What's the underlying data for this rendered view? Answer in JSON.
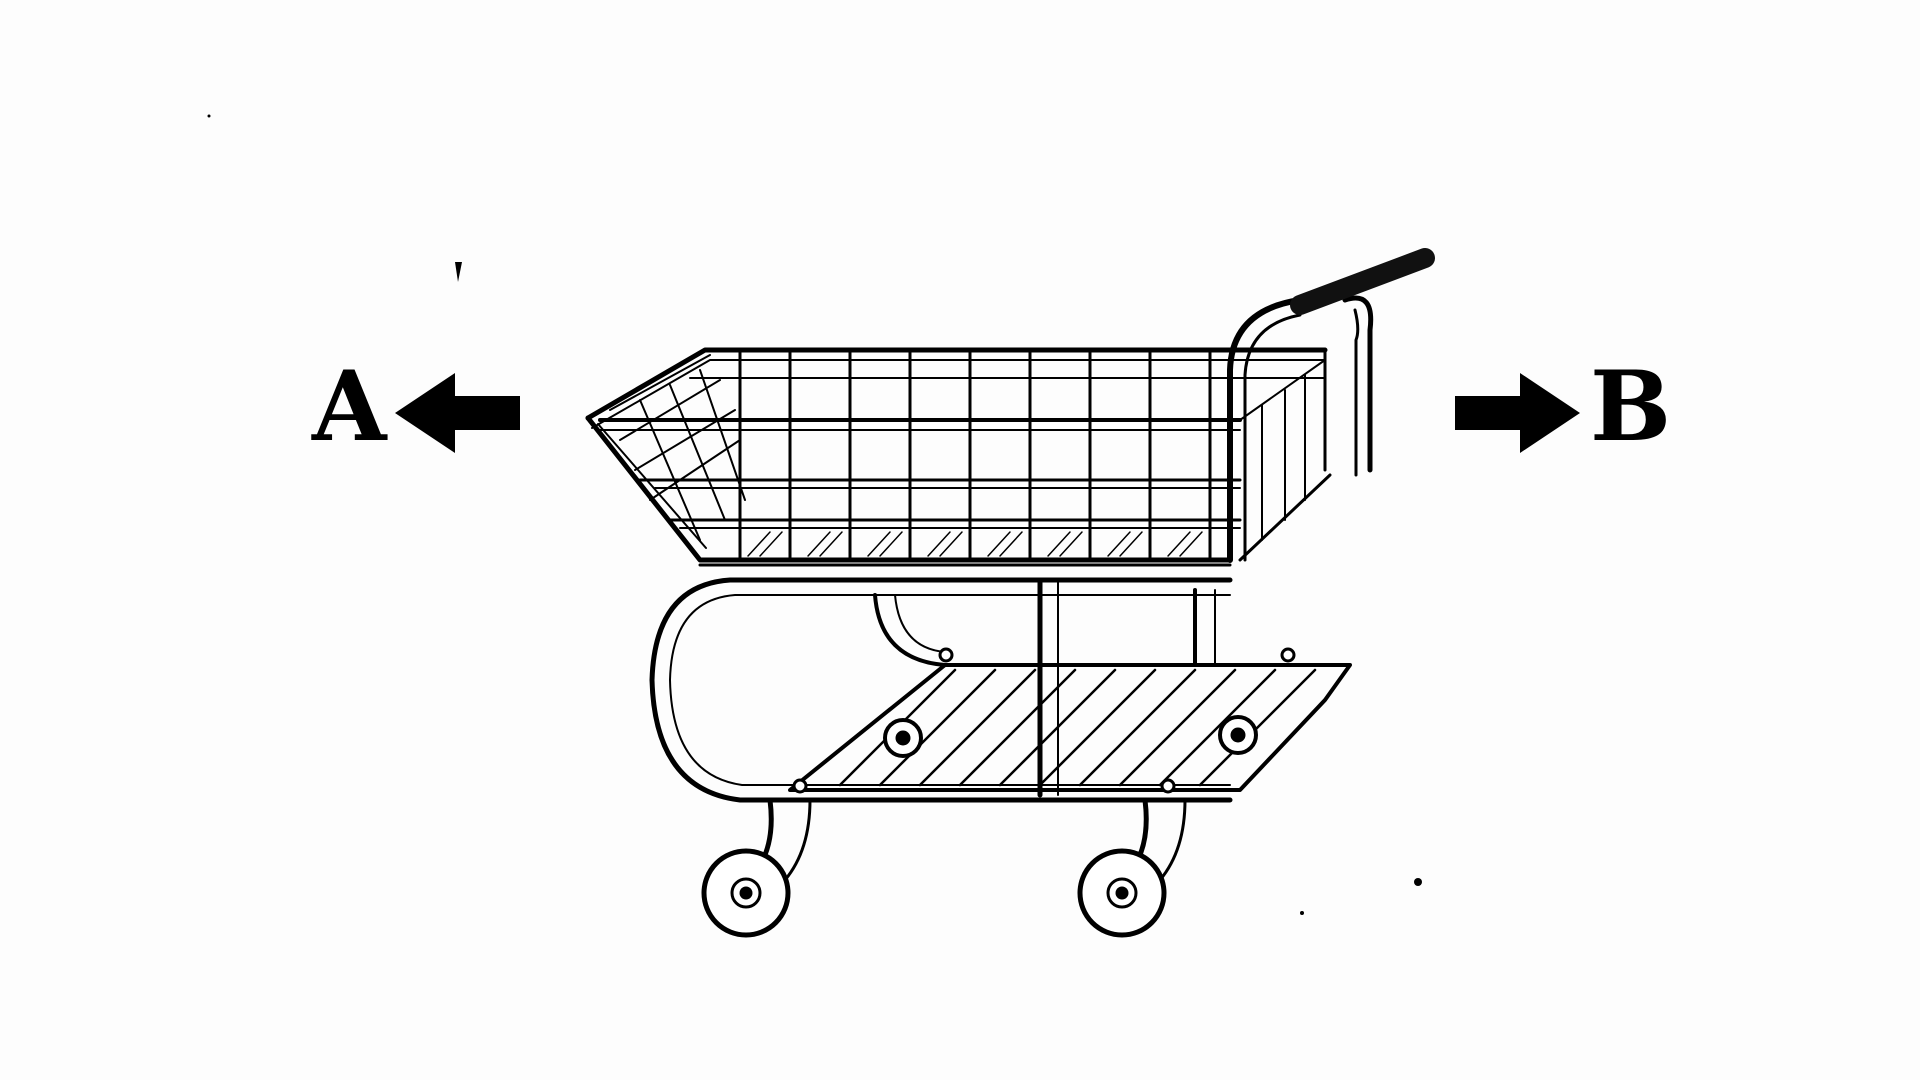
{
  "diagram": {
    "subject": "shopping-cart",
    "labels": {
      "left": "A",
      "right": "B"
    },
    "arrows": {
      "left_direction": "left",
      "right_direction": "right"
    },
    "colors": {
      "ink": "#000000",
      "paper": "#fdfdfd",
      "handle_grip": "#111111"
    }
  }
}
